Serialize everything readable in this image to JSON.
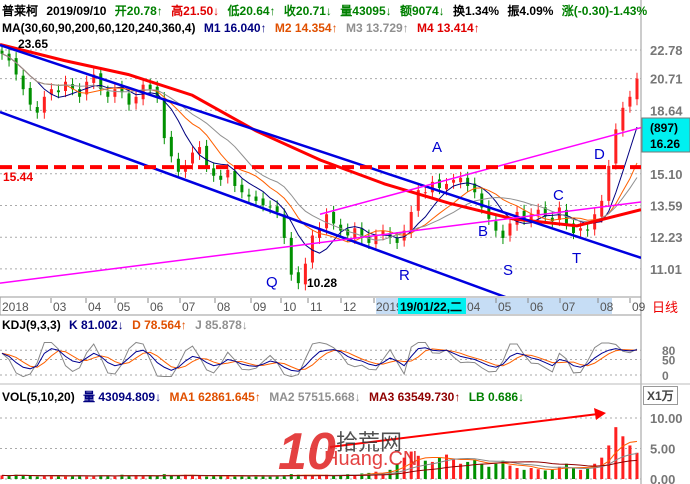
{
  "quote": {
    "name": "普莱柯",
    "date": "2019/09/10",
    "open": "开20.78↑",
    "high": "高21.50↓",
    "low": "低20.64↑",
    "close": "收20.71↓",
    "volume": "量43095↓",
    "amount": "额9074↓",
    "turnover": "换1.34%",
    "amplitude": "振4.09%",
    "change": "涨(-0.30)-1.43%"
  },
  "ma_header": {
    "label": "MA(30,60,90,200,60,120,240,360,4)",
    "m1": "M1 16.040↑",
    "m2": "M2 14.354↑",
    "m3": "M3 13.729↑",
    "m4": "M4 13.414↑"
  },
  "kdj_header": {
    "label": "KDJ(9,3,3)",
    "k": "K 81.002↓",
    "d": "D 78.564↑",
    "j": "J 85.878↓"
  },
  "vol_header": {
    "label": "VOL(5,10,20)",
    "v": "量 43094.809↓",
    "ma1": "MA1 62861.645↑",
    "ma2": "MA2 57515.668↓",
    "ma3": "MA3 63549.730↑",
    "lb": "LB 0.686↓",
    "unit": "X1万"
  },
  "xaxis": {
    "ticks": [
      "2018",
      "03",
      "04",
      "05",
      "06",
      "07",
      "08",
      "09",
      "10",
      "11",
      "12",
      "2019",
      "04",
      "05",
      "06",
      "07",
      "08",
      "09"
    ],
    "cursor": "19/01/22,二",
    "period": "日线"
  },
  "price_axis": {
    "ticks": [
      "22.78",
      "20.71",
      "18.64",
      "15.10",
      "13.59",
      "12.23",
      "11.01"
    ],
    "cursor_count": "(897)",
    "cursor_price": "16.26",
    "scale": "log"
  },
  "kdj_axis": [
    "80",
    "50",
    "0"
  ],
  "vol_axis": [
    "10.00",
    "5.00",
    "0.00"
  ],
  "annotations": {
    "high": "23.65",
    "low": "10.28",
    "resistance": "15.44",
    "points": [
      "A",
      "B",
      "C",
      "D",
      "Q",
      "R",
      "S",
      "T"
    ]
  },
  "watermark": {
    "num": "10",
    "cn": "拾荒网",
    "en": "Huang.CN"
  },
  "colors": {
    "up": "#ff2020",
    "down": "#009000",
    "trend": "#0000e0",
    "channel": "#ff00ff",
    "m1": "#000080",
    "m2": "#ff6000",
    "m3": "#909090",
    "m4": "#ff0000"
  },
  "chart_data": {
    "type": "candlestick",
    "close": [
      22.5,
      22,
      21,
      20,
      19,
      18.5,
      19.5,
      20,
      19.8,
      20.5,
      20,
      19.5,
      20.5,
      21,
      20,
      19.5,
      20,
      19.8,
      19,
      19.5,
      20.3,
      20,
      19.5,
      17,
      16,
      15.2,
      15.5,
      16.2,
      16.5,
      15.5,
      15,
      14.8,
      15.3,
      14.5,
      14.2,
      14,
      13.8,
      13.6,
      13.5,
      13.3,
      12.2,
      10.8,
      10.5,
      11.2,
      12.3,
      12.6,
      13.2,
      12.8,
      12.5,
      12.3,
      12.6,
      12.2,
      12,
      12.3,
      12.5,
      12.2,
      12,
      12.5,
      13.3,
      14.3,
      14.2,
      14.7,
      14.4,
      14.6,
      14.8,
      14.9,
      14.5,
      14.2,
      13.5,
      13,
      12.5,
      12.2,
      12.8,
      13.3,
      13,
      13.2,
      13.4,
      13.1,
      12.9,
      13.5,
      12.8,
      12.4,
      12.6,
      12.5,
      13.2,
      13.8,
      15.5,
      17.5,
      18.8,
      19.5,
      20.71
    ],
    "m4": [
      23.2,
      22,
      21,
      19.6,
      17.4,
      15.8,
      14.6,
      13.7,
      13.0,
      12.7,
      13.4
    ],
    "trendlines": [
      {
        "name": "upper-trend",
        "color": "trend",
        "start_price": 23.16,
        "end_price": 11.42
      },
      {
        "name": "lower-trend",
        "color": "trend",
        "start_price": 18.54,
        "end_price": 8.5
      },
      {
        "name": "lower-channel",
        "color": "channel",
        "start_price": 10.5,
        "end_price": 13.75
      },
      {
        "name": "upper-channel",
        "color": "channel",
        "start_price": 13.2,
        "end_price": 17.6
      }
    ],
    "k": [
      70,
      60,
      40,
      25,
      20,
      30,
      70,
      85,
      80,
      60,
      45,
      40,
      55,
      70,
      60,
      40,
      30,
      35,
      55,
      75,
      80,
      65,
      40,
      25,
      15,
      25,
      45,
      60,
      55,
      40,
      30,
      35,
      50,
      45,
      35,
      30,
      28,
      35,
      45,
      40,
      25,
      15,
      12,
      30,
      55,
      75,
      80,
      82,
      75,
      60,
      50,
      45,
      35,
      30,
      40,
      55,
      45,
      30,
      60,
      85,
      88,
      80,
      78,
      80,
      70,
      60,
      55,
      50,
      40,
      30,
      25,
      35,
      60,
      70,
      65,
      55,
      50,
      40,
      30,
      50,
      45,
      30,
      25,
      35,
      55,
      70,
      80,
      85,
      80,
      78,
      81
    ],
    "volume": [
      0.6,
      0.5,
      0.7,
      0.6,
      0.5,
      0.4,
      0.5,
      0.6,
      0.5,
      0.4,
      0.5,
      0.6,
      0.4,
      0.5,
      0.6,
      0.5,
      0.4,
      0.7,
      0.5,
      0.6,
      0.5,
      0.6,
      0.5,
      0.8,
      0.6,
      0.5,
      0.7,
      0.6,
      0.5,
      0.4,
      0.5,
      0.6,
      0.5,
      0.4,
      0.5,
      0.4,
      0.5,
      0.6,
      0.4,
      0.5,
      0.6,
      0.8,
      0.7,
      0.6,
      0.5,
      0.6,
      0.7,
      0.5,
      0.6,
      0.8,
      0.7,
      0.9,
      1.0,
      1.2,
      1.0,
      1.5,
      2.5,
      3.5,
      4.5,
      3.8,
      3.0,
      2.8,
      3.5,
      4.0,
      3.2,
      2.5,
      2.8,
      3.2,
      2.5,
      2.0,
      2.5,
      3.0,
      2.2,
      1.8,
      1.5,
      1.8,
      1.6,
      1.4,
      1.5,
      2.0,
      2.5,
      1.8,
      1.5,
      1.7,
      2.5,
      3.5,
      5.5,
      8.5,
      7.0,
      5.5,
      4.3
    ]
  }
}
